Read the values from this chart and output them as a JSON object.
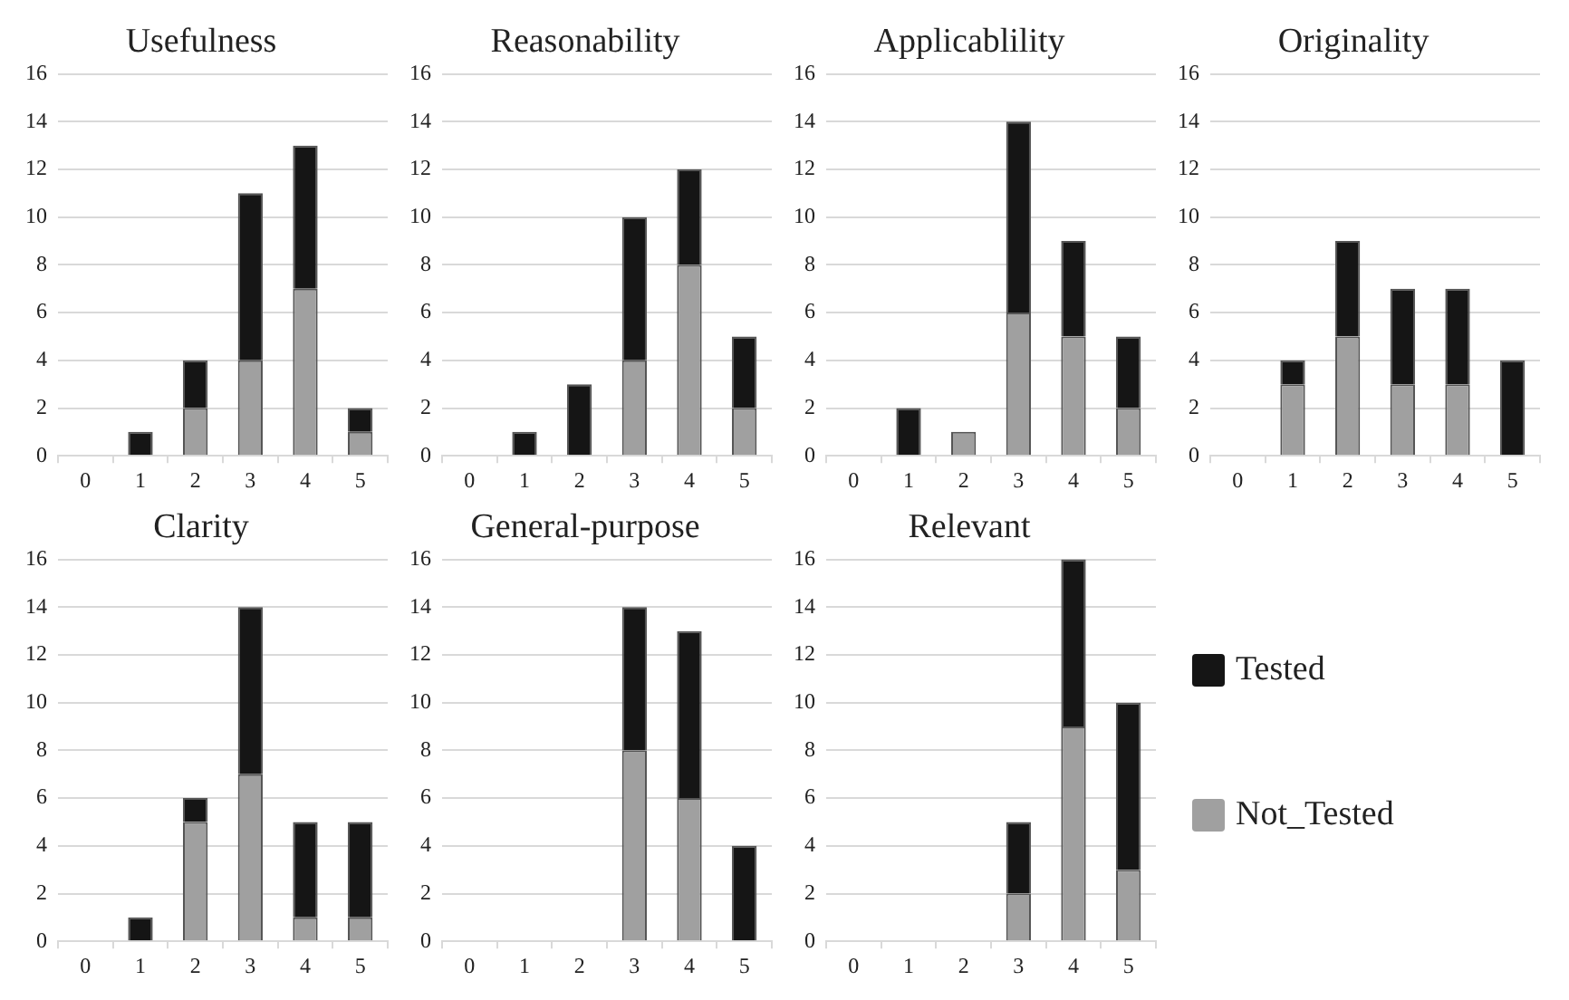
{
  "chart_data": [
    {
      "type": "bar",
      "title": "Usefulness",
      "categories": [
        "0",
        "1",
        "2",
        "3",
        "4",
        "5"
      ],
      "stacked": true,
      "ylim": [
        0,
        16
      ],
      "yticks": [
        0,
        2,
        4,
        6,
        8,
        10,
        12,
        14,
        16
      ],
      "grid": "y",
      "series": [
        {
          "color": "#a0a0a0",
          "values": [
            0,
            0,
            2,
            4,
            7,
            1
          ]
        },
        {
          "color": "#151515",
          "values": [
            0,
            1,
            2,
            7,
            6,
            1
          ]
        }
      ]
    },
    {
      "type": "bar",
      "title": "Reasonability",
      "categories": [
        "0",
        "1",
        "2",
        "3",
        "4",
        "5"
      ],
      "stacked": true,
      "ylim": [
        0,
        16
      ],
      "yticks": [
        0,
        2,
        4,
        6,
        8,
        10,
        12,
        14,
        16
      ],
      "grid": "y",
      "series": [
        {
          "color": "#a0a0a0",
          "values": [
            0,
            0,
            0,
            4,
            8,
            2
          ]
        },
        {
          "color": "#151515",
          "values": [
            0,
            1,
            3,
            6,
            4,
            3
          ]
        }
      ]
    },
    {
      "type": "bar",
      "title": "Applicablility",
      "categories": [
        "0",
        "1",
        "2",
        "3",
        "4",
        "5"
      ],
      "stacked": true,
      "ylim": [
        0,
        16
      ],
      "yticks": [
        0,
        2,
        4,
        6,
        8,
        10,
        12,
        14,
        16
      ],
      "grid": "y",
      "series": [
        {
          "color": "#a0a0a0",
          "values": [
            0,
            0,
            1,
            6,
            5,
            2
          ]
        },
        {
          "color": "#151515",
          "values": [
            0,
            2,
            0,
            8,
            4,
            3
          ]
        }
      ]
    },
    {
      "type": "bar",
      "title": "Originality",
      "categories": [
        "0",
        "1",
        "2",
        "3",
        "4",
        "5"
      ],
      "stacked": true,
      "ylim": [
        0,
        16
      ],
      "yticks": [
        0,
        2,
        4,
        6,
        8,
        10,
        12,
        14,
        16
      ],
      "grid": "y",
      "series": [
        {
          "color": "#a0a0a0",
          "values": [
            0,
            3,
            5,
            3,
            3,
            0
          ]
        },
        {
          "color": "#151515",
          "values": [
            0,
            1,
            4,
            4,
            4,
            4
          ]
        }
      ]
    },
    {
      "type": "bar",
      "title": "Clarity",
      "categories": [
        "0",
        "1",
        "2",
        "3",
        "4",
        "5"
      ],
      "stacked": true,
      "ylim": [
        0,
        16
      ],
      "yticks": [
        0,
        2,
        4,
        6,
        8,
        10,
        12,
        14,
        16
      ],
      "grid": "y",
      "series": [
        {
          "color": "#a0a0a0",
          "values": [
            0,
            0,
            5,
            7,
            1,
            1
          ]
        },
        {
          "color": "#151515",
          "values": [
            0,
            1,
            1,
            7,
            4,
            4
          ]
        }
      ]
    },
    {
      "type": "bar",
      "title": "General-purpose",
      "categories": [
        "0",
        "1",
        "2",
        "3",
        "4",
        "5"
      ],
      "stacked": true,
      "ylim": [
        0,
        16
      ],
      "yticks": [
        0,
        2,
        4,
        6,
        8,
        10,
        12,
        14,
        16
      ],
      "grid": "y",
      "series": [
        {
          "color": "#a0a0a0",
          "values": [
            0,
            0,
            0,
            8,
            6,
            0
          ]
        },
        {
          "color": "#151515",
          "values": [
            0,
            0,
            0,
            6,
            7,
            4
          ]
        }
      ]
    },
    {
      "type": "bar",
      "title": "Relevant",
      "categories": [
        "0",
        "1",
        "2",
        "3",
        "4",
        "5"
      ],
      "stacked": true,
      "ylim": [
        0,
        16
      ],
      "yticks": [
        0,
        2,
        4,
        6,
        8,
        10,
        12,
        14,
        16
      ],
      "grid": "y",
      "legend": "right",
      "series": [
        {
          "name": "Not_Tested",
          "color": "#a0a0a0",
          "values": [
            0,
            0,
            0,
            2,
            9,
            3
          ]
        },
        {
          "name": "Tested",
          "color": "#151515",
          "values": [
            0,
            0,
            0,
            3,
            7,
            7
          ]
        }
      ]
    }
  ]
}
